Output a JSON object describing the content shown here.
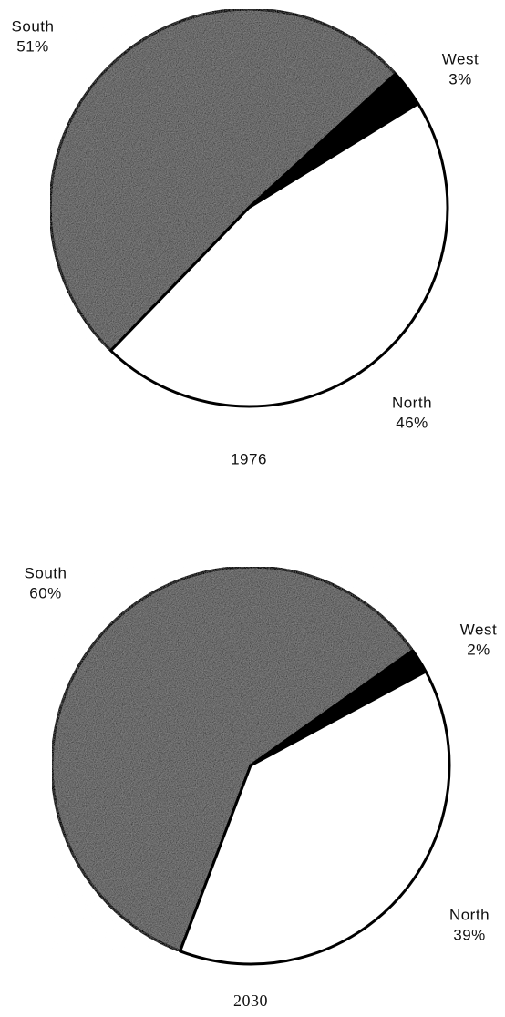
{
  "chart_data": [
    {
      "type": "pie",
      "title": "1976",
      "categories": [
        "South",
        "West",
        "North"
      ],
      "values": [
        51,
        3,
        46
      ],
      "value_labels": [
        "51%",
        "3%",
        "46%"
      ],
      "colors": [
        "#8c8c8c",
        "#000000",
        "#ffffff"
      ]
    },
    {
      "type": "pie",
      "title": "2030",
      "categories": [
        "South",
        "West",
        "North"
      ],
      "values": [
        60,
        2,
        39
      ],
      "value_labels": [
        "60%",
        "2%",
        "39%"
      ],
      "colors": [
        "#8c8c8c",
        "#000000",
        "#ffffff"
      ]
    }
  ]
}
